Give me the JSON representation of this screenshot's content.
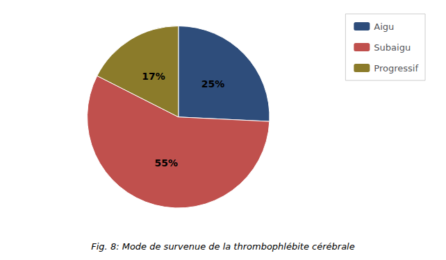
{
  "chart_data": {
    "type": "pie",
    "title": "Fig. 8: Mode de survenue de la thrombophlébite cérébrale",
    "categories": [
      "Aigu",
      "Subaigu",
      "Progressif"
    ],
    "values": [
      25,
      55,
      17
    ],
    "value_labels": [
      "25%",
      "55%",
      "17%"
    ],
    "colors": [
      "#2E4D7B",
      "#C0504D",
      "#8B7B2A"
    ],
    "data_labels": true,
    "legend": "upper right"
  }
}
